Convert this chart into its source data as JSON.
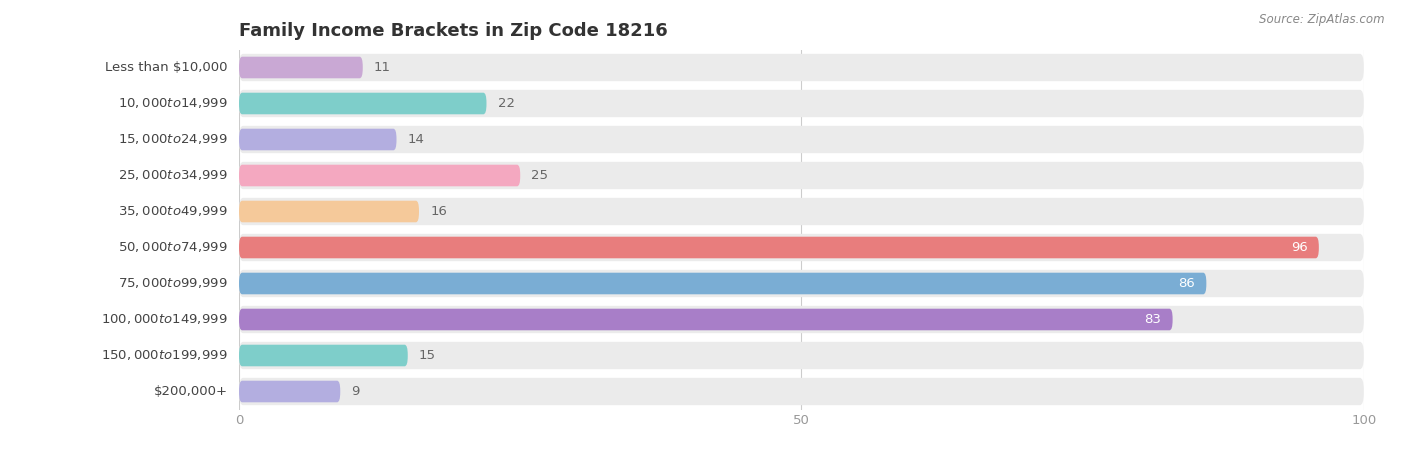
{
  "title": "Family Income Brackets in Zip Code 18216",
  "source": "Source: ZipAtlas.com",
  "categories": [
    "Less than $10,000",
    "$10,000 to $14,999",
    "$15,000 to $24,999",
    "$25,000 to $34,999",
    "$35,000 to $49,999",
    "$50,000 to $74,999",
    "$75,000 to $99,999",
    "$100,000 to $149,999",
    "$150,000 to $199,999",
    "$200,000+"
  ],
  "values": [
    11,
    22,
    14,
    25,
    16,
    96,
    86,
    83,
    15,
    9
  ],
  "bar_colors": [
    "#c9a8d4",
    "#7ececa",
    "#b3aee0",
    "#f4a8c0",
    "#f5c99a",
    "#e87d7d",
    "#7aadd4",
    "#a87ec8",
    "#7ececa",
    "#b3aee0"
  ],
  "xlim": [
    0,
    100
  ],
  "xticks": [
    0,
    50,
    100
  ],
  "title_fontsize": 13,
  "label_fontsize": 9.5,
  "value_fontsize": 9.5,
  "bar_height": 0.6,
  "fig_width": 14.06,
  "fig_height": 4.5
}
